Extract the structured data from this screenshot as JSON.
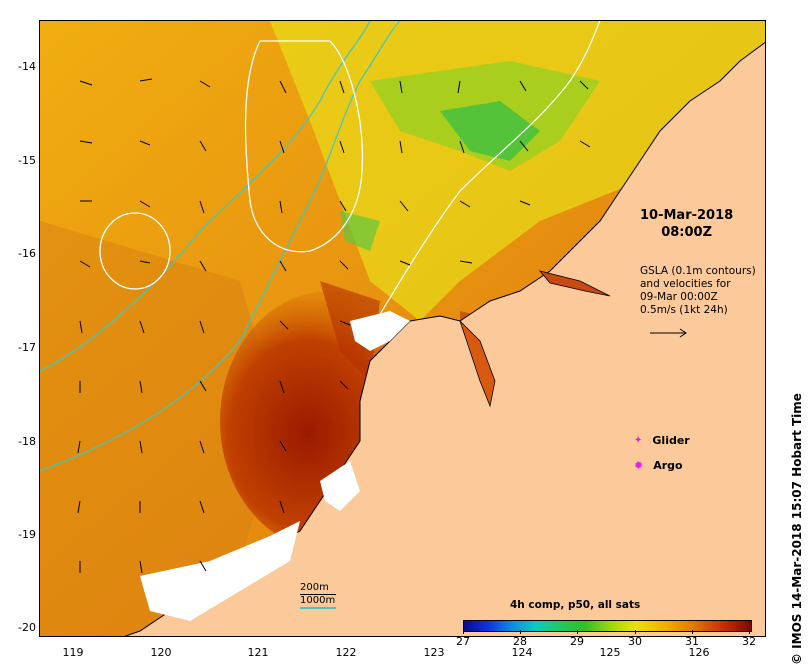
{
  "map": {
    "y_ticks": [
      "-14",
      "-15",
      "-16",
      "-17",
      "-18",
      "-19",
      "-20"
    ],
    "x_ticks": [
      "119",
      "120",
      "121",
      "122",
      "123",
      "124",
      "125",
      "126"
    ],
    "timestamp": {
      "date": "10-Mar-2018",
      "time": "08:00Z"
    },
    "gsla_note": [
      "GSLA (0.1m contours)",
      "and velocities for",
      "09-Mar 00:00Z",
      "0.5m/s (1kt 24h)"
    ],
    "legend": {
      "glider": "Glider",
      "argo": "Argo"
    },
    "credit": "© IMOS 14-Mar-2018 15:07 Hobart Time",
    "colorbar": {
      "title": "4h comp, p50, all sats",
      "labels": [
        "27",
        "28",
        "29",
        "30",
        "31",
        "32"
      ]
    },
    "contour_legend": {
      "line1": "200m",
      "line2": "1000m"
    },
    "colors": {
      "land": "#fcc99a",
      "ocean_warm": "#e89a10",
      "ocean_hot": "#9a1a00",
      "contour": "#3ec8c0",
      "argo": "#e020e0"
    },
    "region": {
      "lon_range": [
        118.6,
        126.7
      ],
      "lat_range": [
        -20.1,
        -13.5
      ]
    }
  }
}
